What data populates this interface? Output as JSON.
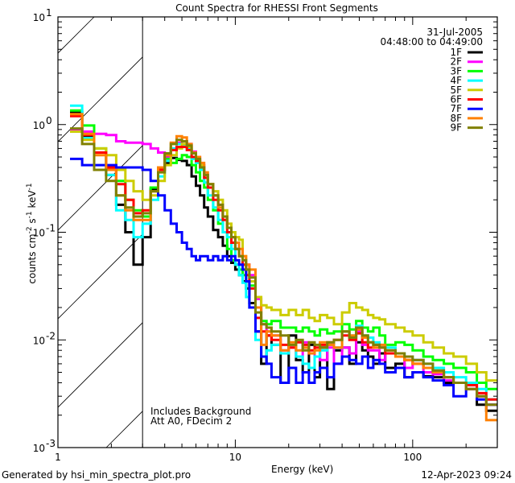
{
  "chart_data": {
    "type": "line",
    "style": "histogram-step",
    "title": "Count Spectra for RHESSI Front Segments",
    "xlabel": "Energy (keV)",
    "ylabel": "counts cm^-2 s^-1 keV^-1",
    "ylabel_parts": {
      "base": "counts cm",
      "e1": "-2",
      "mid": " s",
      "e2": "-1",
      "mid2": " keV",
      "e3": "-1"
    },
    "xscale": "log",
    "yscale": "log",
    "xlim": [
      1,
      300
    ],
    "ylim": [
      0.001,
      10
    ],
    "x_ticks": [
      {
        "value": 1,
        "label": "1"
      },
      {
        "value": 10,
        "label": "10"
      },
      {
        "value": 100,
        "label": "100"
      }
    ],
    "y_ticks": [
      {
        "value": 10,
        "base": "10",
        "exp": "1"
      },
      {
        "value": 1,
        "base": "10",
        "exp": "0"
      },
      {
        "value": 0.1,
        "base": "10",
        "exp": "-1"
      },
      {
        "value": 0.01,
        "base": "10",
        "exp": "-2"
      },
      {
        "value": 0.001,
        "base": "10",
        "exp": "-3"
      }
    ],
    "grid": false,
    "hatched_region": {
      "xmin": 1,
      "xmax": 3
    },
    "legend_position": "top-right",
    "legend_header": [
      "31-Jul-2005",
      "04:48:00 to 04:49:00"
    ],
    "annotations": [
      "Includes Background",
      "Att A0, FDecim 2"
    ],
    "energy_edges": [
      1.17,
      1.37,
      1.6,
      1.87,
      2.13,
      2.4,
      2.67,
      3.0,
      3.33,
      3.67,
      4.0,
      4.33,
      4.67,
      5.0,
      5.33,
      5.67,
      6.0,
      6.33,
      6.67,
      7.0,
      7.5,
      8.0,
      8.5,
      9.0,
      9.5,
      10,
      10.5,
      11,
      11.5,
      12,
      13,
      14,
      15,
      16,
      18,
      20,
      22,
      24,
      26,
      28,
      30,
      33,
      36,
      40,
      44,
      48,
      52,
      56,
      60,
      65,
      70,
      80,
      90,
      100,
      115,
      130,
      150,
      170,
      200,
      230,
      260,
      300
    ],
    "series": [
      {
        "name": "1F",
        "color": "#000000",
        "values": [
          1.3,
          0.78,
          0.55,
          0.34,
          0.18,
          0.1,
          0.05,
          0.09,
          0.25,
          0.38,
          0.44,
          0.49,
          0.47,
          0.46,
          0.42,
          0.33,
          0.27,
          0.22,
          0.17,
          0.14,
          0.105,
          0.09,
          0.075,
          0.06,
          0.052,
          0.045,
          0.04,
          0.035,
          0.03,
          0.022,
          0.012,
          0.006,
          0.011,
          0.009,
          0.004,
          0.011,
          0.0065,
          0.005,
          0.009,
          0.0045,
          0.0085,
          0.0035,
          0.008,
          0.0085,
          0.006,
          0.0095,
          0.008,
          0.007,
          0.006,
          0.0075,
          0.0055,
          0.006,
          0.0045,
          0.005,
          0.0046,
          0.0045,
          0.004,
          0.004,
          0.0035,
          0.0025,
          0.0022
        ]
      },
      {
        "name": "2F",
        "color": "#ff00ff",
        "values": [
          0.9,
          0.86,
          0.82,
          0.8,
          0.7,
          0.68,
          0.68,
          0.66,
          0.6,
          0.55,
          0.5,
          0.6,
          0.68,
          0.7,
          0.66,
          0.56,
          0.5,
          0.42,
          0.34,
          0.26,
          0.22,
          0.18,
          0.14,
          0.11,
          0.09,
          0.07,
          0.06,
          0.055,
          0.05,
          0.04,
          0.024,
          0.014,
          0.012,
          0.011,
          0.008,
          0.0085,
          0.007,
          0.0095,
          0.0075,
          0.007,
          0.0065,
          0.0085,
          0.006,
          0.0085,
          0.0075,
          0.012,
          0.009,
          0.008,
          0.008,
          0.0065,
          0.0075,
          0.007,
          0.0055,
          0.0065,
          0.005,
          0.0048,
          0.0042,
          0.004,
          0.0035,
          0.003,
          0.0025
        ]
      },
      {
        "name": "3F",
        "color": "#00ff00",
        "values": [
          1.35,
          0.98,
          0.6,
          0.4,
          0.3,
          0.2,
          0.16,
          0.14,
          0.26,
          0.4,
          0.48,
          0.44,
          0.48,
          0.52,
          0.5,
          0.42,
          0.36,
          0.3,
          0.26,
          0.2,
          0.16,
          0.12,
          0.1,
          0.07,
          0.055,
          0.05,
          0.045,
          0.04,
          0.035,
          0.032,
          0.02,
          0.015,
          0.014,
          0.015,
          0.013,
          0.013,
          0.012,
          0.013,
          0.012,
          0.011,
          0.0125,
          0.0115,
          0.012,
          0.014,
          0.0125,
          0.015,
          0.013,
          0.012,
          0.013,
          0.011,
          0.009,
          0.0095,
          0.009,
          0.008,
          0.007,
          0.0065,
          0.006,
          0.0055,
          0.005,
          0.004,
          0.0035
        ]
      },
      {
        "name": "4F",
        "color": "#00ffff",
        "values": [
          1.5,
          0.75,
          0.55,
          0.34,
          0.16,
          0.13,
          0.09,
          0.12,
          0.2,
          0.33,
          0.46,
          0.6,
          0.66,
          0.64,
          0.6,
          0.48,
          0.44,
          0.38,
          0.29,
          0.22,
          0.17,
          0.13,
          0.1,
          0.09,
          0.07,
          0.05,
          0.04,
          0.034,
          0.025,
          0.02,
          0.01,
          0.007,
          0.008,
          0.009,
          0.0075,
          0.009,
          0.007,
          0.006,
          0.0055,
          0.007,
          0.008,
          0.009,
          0.0085,
          0.012,
          0.011,
          0.0135,
          0.011,
          0.0105,
          0.0095,
          0.009,
          0.0085,
          0.0075,
          0.007,
          0.0065,
          0.006,
          0.0055,
          0.005,
          0.0045,
          0.004,
          0.0035,
          0.0028
        ]
      },
      {
        "name": "5F",
        "color": "#cccc00",
        "values": [
          0.86,
          0.72,
          0.6,
          0.52,
          0.38,
          0.3,
          0.24,
          0.2,
          0.22,
          0.3,
          0.42,
          0.52,
          0.6,
          0.66,
          0.62,
          0.55,
          0.46,
          0.42,
          0.34,
          0.28,
          0.24,
          0.2,
          0.16,
          0.12,
          0.1,
          0.09,
          0.085,
          0.06,
          0.045,
          0.035,
          0.025,
          0.021,
          0.02,
          0.019,
          0.017,
          0.019,
          0.017,
          0.019,
          0.016,
          0.015,
          0.017,
          0.016,
          0.014,
          0.018,
          0.022,
          0.02,
          0.019,
          0.017,
          0.016,
          0.0155,
          0.014,
          0.013,
          0.012,
          0.011,
          0.0095,
          0.0085,
          0.0075,
          0.007,
          0.006,
          0.005,
          0.0042
        ]
      },
      {
        "name": "6F",
        "color": "#ff0000",
        "values": [
          1.2,
          0.8,
          0.55,
          0.4,
          0.28,
          0.2,
          0.15,
          0.16,
          0.24,
          0.38,
          0.52,
          0.58,
          0.62,
          0.62,
          0.58,
          0.5,
          0.46,
          0.4,
          0.32,
          0.26,
          0.2,
          0.16,
          0.13,
          0.1,
          0.08,
          0.07,
          0.06,
          0.05,
          0.04,
          0.03,
          0.016,
          0.012,
          0.011,
          0.01,
          0.009,
          0.0085,
          0.0095,
          0.009,
          0.008,
          0.0085,
          0.009,
          0.0095,
          0.01,
          0.011,
          0.01,
          0.0115,
          0.0095,
          0.0085,
          0.009,
          0.0085,
          0.0075,
          0.007,
          0.0065,
          0.006,
          0.0055,
          0.005,
          0.0045,
          0.004,
          0.0038,
          0.0032,
          0.0028
        ]
      },
      {
        "name": "7F",
        "color": "#0000ff",
        "values": [
          0.48,
          0.42,
          0.42,
          0.42,
          0.4,
          0.4,
          0.4,
          0.38,
          0.3,
          0.22,
          0.16,
          0.12,
          0.1,
          0.08,
          0.07,
          0.06,
          0.055,
          0.06,
          0.06,
          0.055,
          0.06,
          0.055,
          0.06,
          0.055,
          0.06,
          0.055,
          0.05,
          0.045,
          0.035,
          0.02,
          0.012,
          0.007,
          0.006,
          0.0045,
          0.004,
          0.0055,
          0.004,
          0.005,
          0.004,
          0.005,
          0.0055,
          0.0045,
          0.006,
          0.007,
          0.0065,
          0.006,
          0.007,
          0.0055,
          0.0065,
          0.006,
          0.005,
          0.0055,
          0.0045,
          0.005,
          0.0045,
          0.0042,
          0.0038,
          0.003,
          0.0035,
          0.0028,
          0.0025
        ]
      },
      {
        "name": "8F",
        "color": "#ff8000",
        "values": [
          1.25,
          0.82,
          0.52,
          0.38,
          0.22,
          0.16,
          0.13,
          0.13,
          0.24,
          0.4,
          0.52,
          0.68,
          0.78,
          0.76,
          0.66,
          0.55,
          0.5,
          0.44,
          0.36,
          0.28,
          0.22,
          0.17,
          0.14,
          0.11,
          0.09,
          0.08,
          0.07,
          0.06,
          0.05,
          0.045,
          0.02,
          0.009,
          0.012,
          0.011,
          0.008,
          0.0095,
          0.008,
          0.0085,
          0.0075,
          0.008,
          0.0095,
          0.009,
          0.0085,
          0.012,
          0.011,
          0.0125,
          0.0105,
          0.0095,
          0.0085,
          0.009,
          0.008,
          0.007,
          0.0065,
          0.006,
          0.0055,
          0.005,
          0.0045,
          0.004,
          0.0035,
          0.003,
          0.0018
        ]
      },
      {
        "name": "9F",
        "color": "#808000",
        "values": [
          0.92,
          0.66,
          0.38,
          0.3,
          0.22,
          0.17,
          0.14,
          0.15,
          0.24,
          0.36,
          0.54,
          0.66,
          0.72,
          0.7,
          0.64,
          0.54,
          0.48,
          0.4,
          0.34,
          0.28,
          0.22,
          0.18,
          0.14,
          0.11,
          0.09,
          0.07,
          0.06,
          0.055,
          0.045,
          0.038,
          0.018,
          0.014,
          0.013,
          0.012,
          0.011,
          0.009,
          0.01,
          0.008,
          0.0095,
          0.009,
          0.0085,
          0.0095,
          0.01,
          0.012,
          0.0105,
          0.013,
          0.011,
          0.0095,
          0.009,
          0.0085,
          0.008,
          0.0075,
          0.007,
          0.0065,
          0.006,
          0.0052,
          0.0045,
          0.004,
          0.0035,
          0.003,
          0.0025
        ]
      }
    ]
  },
  "footer": {
    "left": "Generated by hsi_min_spectra_plot.pro",
    "right": "12-Apr-2023 09:24"
  }
}
